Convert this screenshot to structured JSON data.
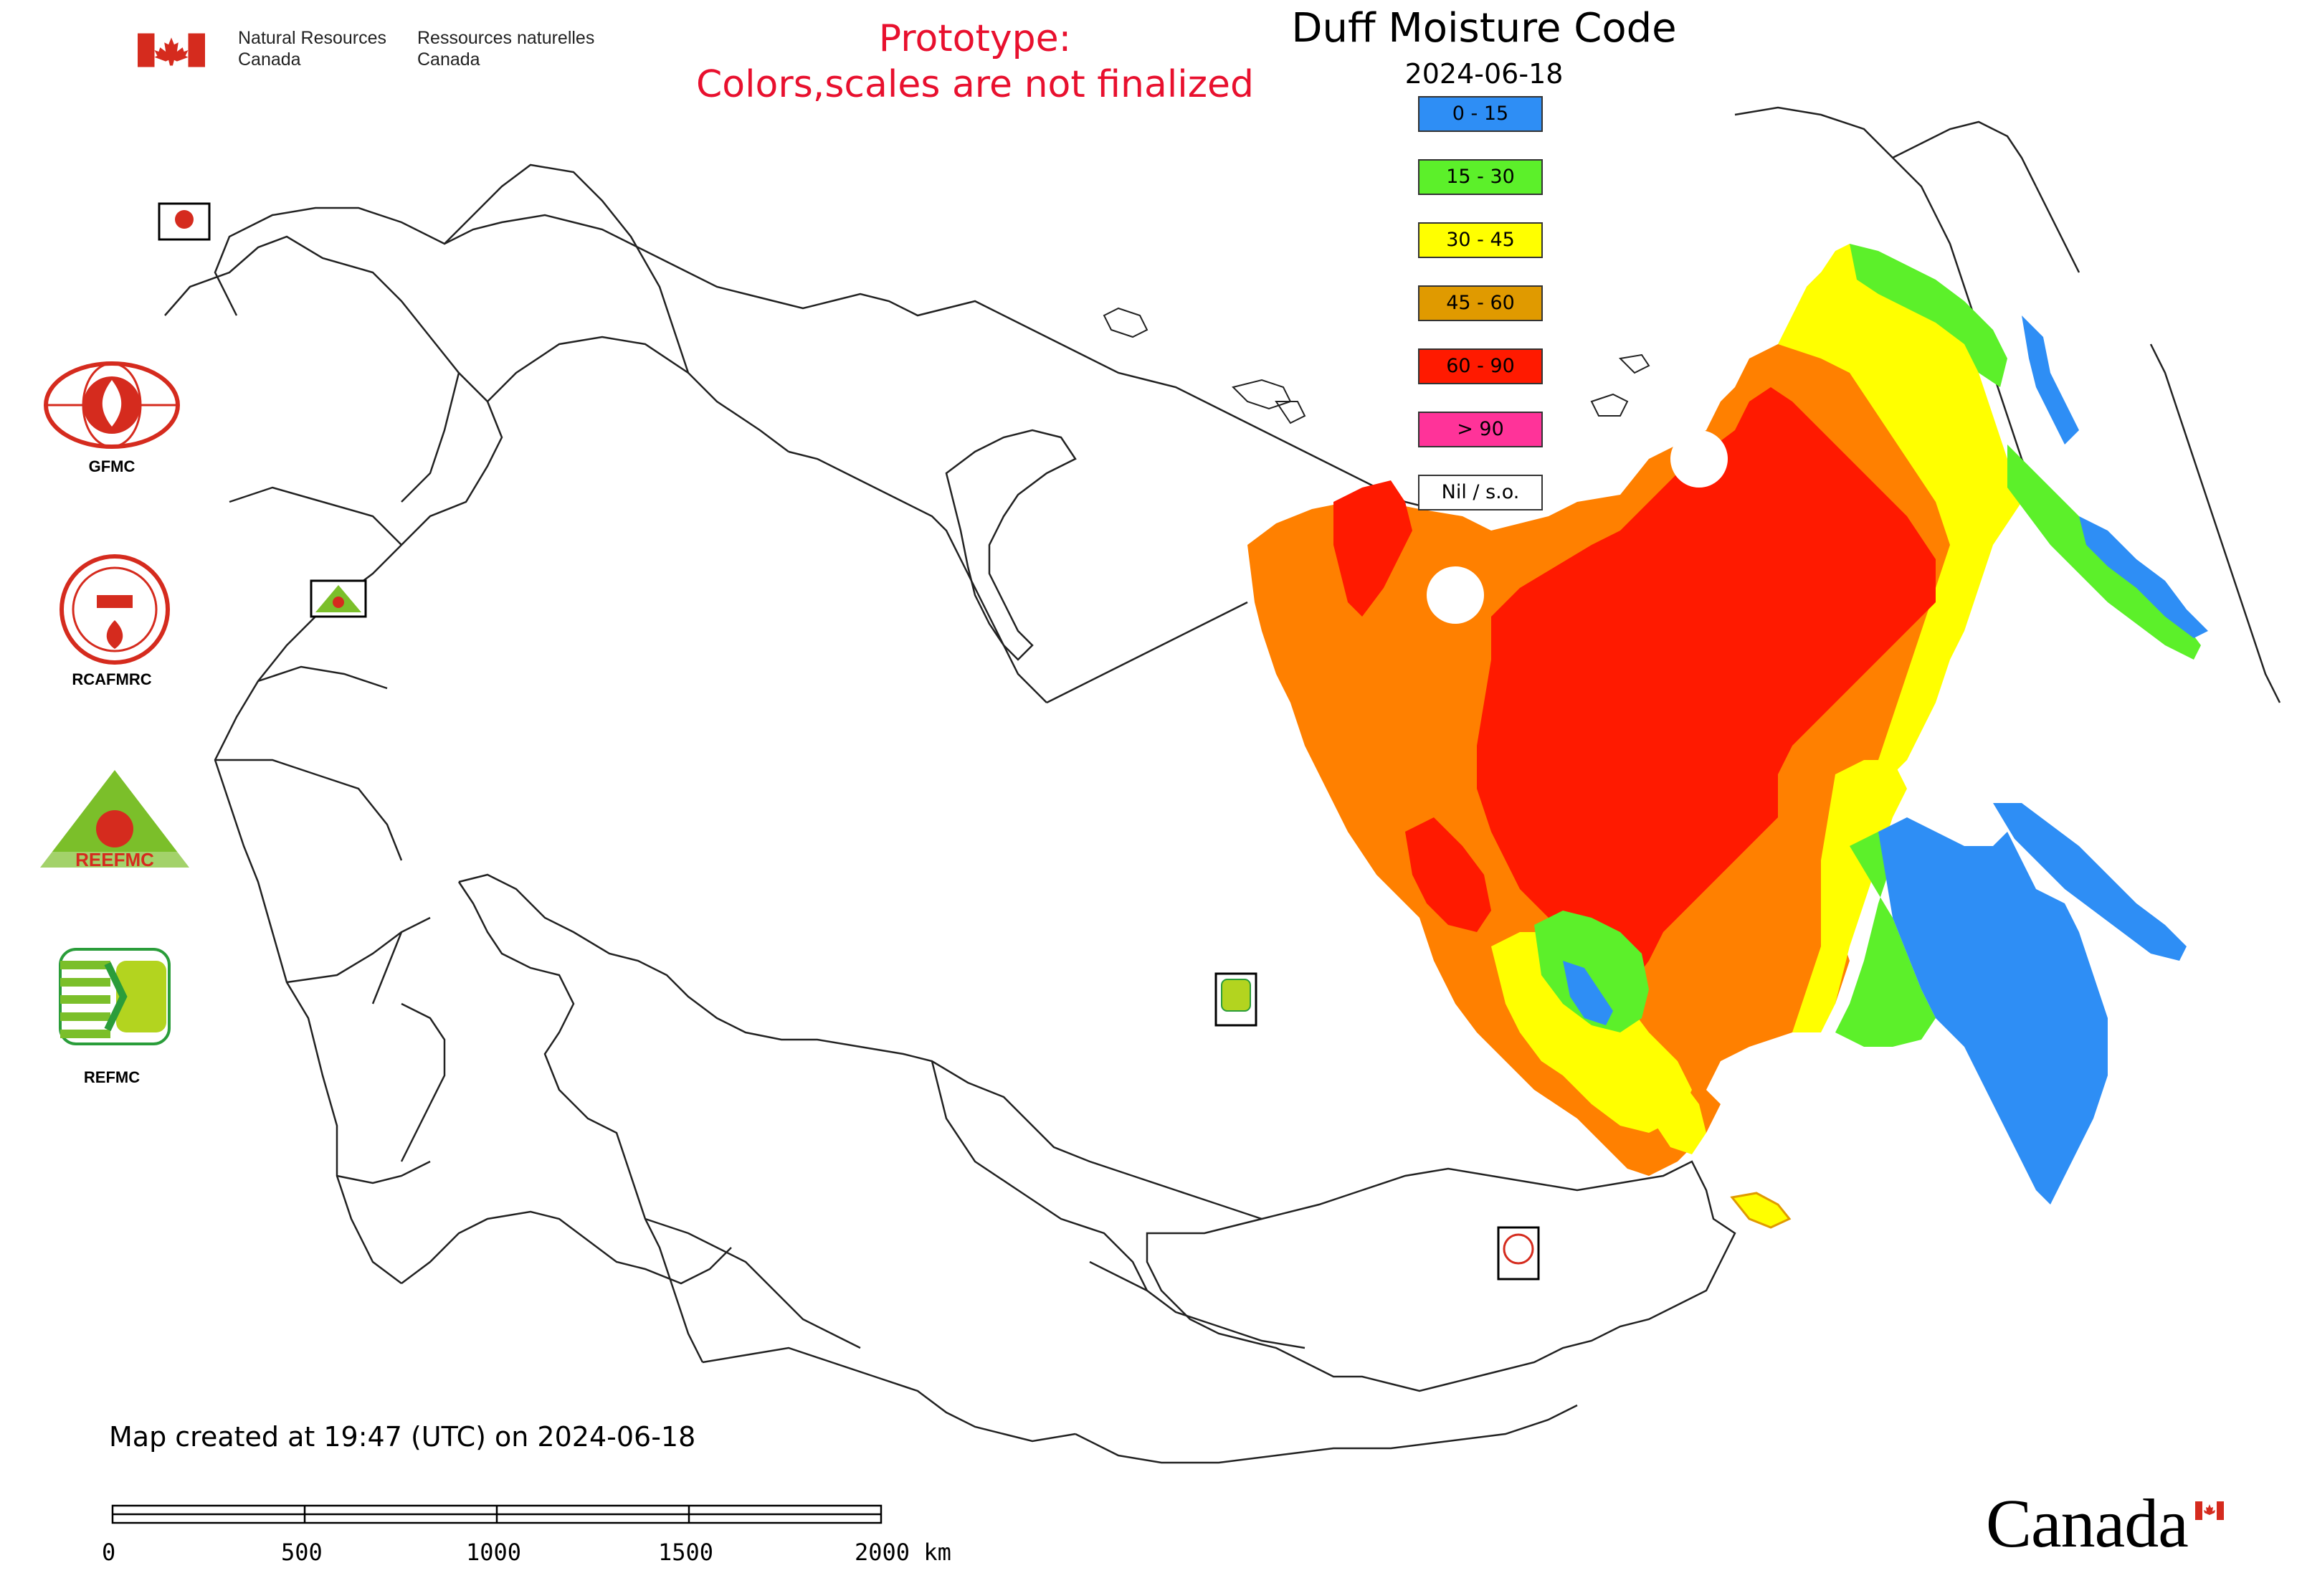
{
  "header": {
    "gov_en_line1": "Natural Resources",
    "gov_en_line2": "Canada",
    "gov_fr_line1": "Ressources naturelles",
    "gov_fr_line2": "Canada",
    "prototype_line1": "Prototype:",
    "prototype_line2": "Colors,scales are not finalized",
    "title": "Duff Moisture Code",
    "date": "2024-06-18"
  },
  "legend": {
    "items": [
      {
        "label": "0 - 15",
        "color": "#2e8ef5"
      },
      {
        "label": "15 - 30",
        "color": "#5cf02a"
      },
      {
        "label": "30 - 45",
        "color": "#ffff00"
      },
      {
        "label": "45 - 60",
        "color": "#e09a00"
      },
      {
        "label": "60 - 90",
        "color": "#ff1a00"
      },
      {
        "label": "> 90",
        "color": "#ff3399"
      },
      {
        "label": "Nil / s.o.",
        "color": "#ffffff"
      }
    ]
  },
  "side_logos": [
    {
      "label": "GFMC",
      "icon": "gfmc-globe-flame-icon"
    },
    {
      "label": "RCAFMRC",
      "icon": "rcafmrc-seal-icon"
    },
    {
      "label": "",
      "icon": "reefmc-triangle-icon"
    },
    {
      "label": "REFMC",
      "icon": "refmc-sigma-icon"
    }
  ],
  "map_badges": [
    {
      "icon": "gfmc-badge-icon"
    },
    {
      "icon": "reefmc-badge-icon"
    },
    {
      "icon": "refmc-badge-icon"
    },
    {
      "icon": "rcafmrc-badge-icon"
    }
  ],
  "footer": {
    "created": "Map created at 19:47 (UTC) on 2024-06-18",
    "scale_ticks": [
      "0",
      "500",
      "1000",
      "1500",
      "2000 km"
    ],
    "canada_wordmark": "Canada"
  },
  "colors": {
    "prototype_text": "#e8102e",
    "orange": "#ff8000",
    "red": "#ff1a00",
    "yellow": "#ffff00",
    "green": "#5cf02a",
    "blue": "#2e8ef5",
    "flag_red": "#d52b1e"
  }
}
